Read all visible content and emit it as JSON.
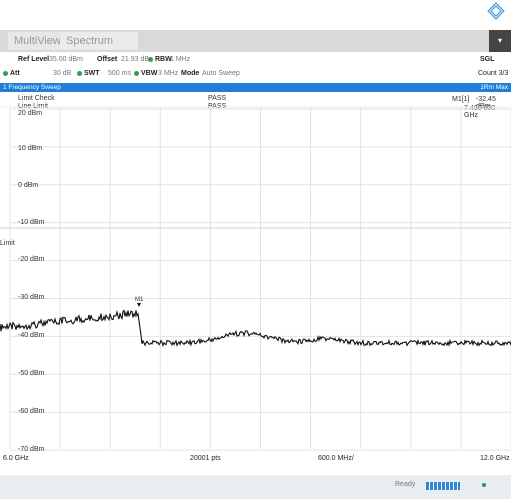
{
  "tabs": {
    "multiview": "MultiView",
    "spectrum": "Spectrum"
  },
  "params": {
    "ref_level_label": "Ref Level",
    "ref_level_value": "35.00 dBm",
    "offset_label": "Offset",
    "offset_value": "21.93 dB",
    "rbw_label": "RBW",
    "rbw_value": "1 MHz",
    "sgl": "SGL",
    "att_label": "Att",
    "att_value": "30 dB",
    "swt_label": "SWT",
    "swt_value": "500 ms",
    "vbw_label": "VBW",
    "vbw_value": "3 MHz",
    "mode_label": "Mode",
    "mode_value": "Auto Sweep",
    "count": "Count 3/3"
  },
  "sweep": {
    "title": "1 Frequency Sweep",
    "trace": "1Rm Max"
  },
  "limit": {
    "check_label": "Limit Check",
    "line_label": "Line Limit",
    "check_value": "PASS",
    "line_value": "PASS",
    "limit_text": "Limit"
  },
  "marker": {
    "label": "M1[1]",
    "level": "-32.45 dBm",
    "freq": "7.480 800 GHz",
    "tag": "M1"
  },
  "axis": {
    "y_labels": [
      "20 dBm",
      "10 dBm",
      "0 dBm",
      "-10 dBm",
      "-20 dBm",
      "-30 dBm",
      "-40 dBm",
      "-50 dBm",
      "-60 dBm",
      "-70 dBm"
    ],
    "start": "6.0 GHz",
    "points": "20001 pts",
    "span": "600.0 MHz/",
    "stop": "12.0 GHz"
  },
  "status": {
    "ready": "Ready"
  }
}
